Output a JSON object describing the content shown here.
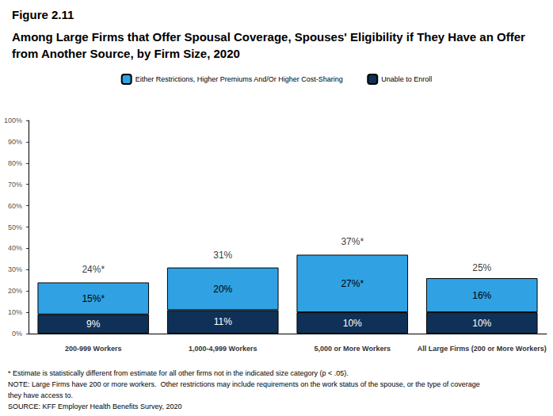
{
  "chart_data": {
    "type": "bar",
    "title": "Figure 2.11",
    "subtitle": "Among Large Firms that Offer Spousal Coverage, Spouses' Eligibility if They Have an Offer from Another Source, by Firm Size, 2020",
    "categories": [
      "200-999 Workers",
      "1,000-4,999 Workers",
      "5,000 or More Workers",
      "All Large Firms (200 or More Workers)"
    ],
    "series": [
      {
        "name": "Unable to Enroll",
        "color": "#0f3157",
        "values": [
          9,
          11,
          10,
          10
        ],
        "value_labels": [
          "9%",
          "11%",
          "10%",
          "10%"
        ]
      },
      {
        "name": "Either Restrictions, Higher Premiums And/Or Higher Cost-Sharing",
        "color": "#30a2e4",
        "values": [
          15,
          20,
          27,
          16
        ],
        "value_labels": [
          "15%*",
          "20%",
          "27%*",
          "16%"
        ]
      }
    ],
    "totals": [
      24,
      31,
      37,
      25
    ],
    "total_labels": [
      "24%*",
      "31%",
      "37%*",
      "25%"
    ],
    "stacked": true,
    "data_labels": true,
    "legend": "top",
    "grid": false,
    "ylim": [
      0,
      100
    ],
    "yticks": [
      {
        "value": 0,
        "label": "0%"
      },
      {
        "value": 10,
        "label": "10%"
      },
      {
        "value": 20,
        "label": "20%"
      },
      {
        "value": 30,
        "label": "30%"
      },
      {
        "value": 40,
        "label": "40%"
      },
      {
        "value": 50,
        "label": "50%"
      },
      {
        "value": 60,
        "label": "60%"
      },
      {
        "value": 70,
        "label": "70%"
      },
      {
        "value": 80,
        "label": "80%"
      },
      {
        "value": 90,
        "label": "90%"
      },
      {
        "value": 100,
        "label": "100%"
      }
    ],
    "notes": [
      "* Estimate is statistically different from estimate for all other firms not in the indicated size category (p < .05).",
      "NOTE: Large Firms have 200 or more workers.  Other restrictions may include requirements on the work status of the spouse, or the type of coverage",
      "they have access to.",
      "SOURCE: KFF Employer Health Benefits Survey, 2020"
    ]
  }
}
